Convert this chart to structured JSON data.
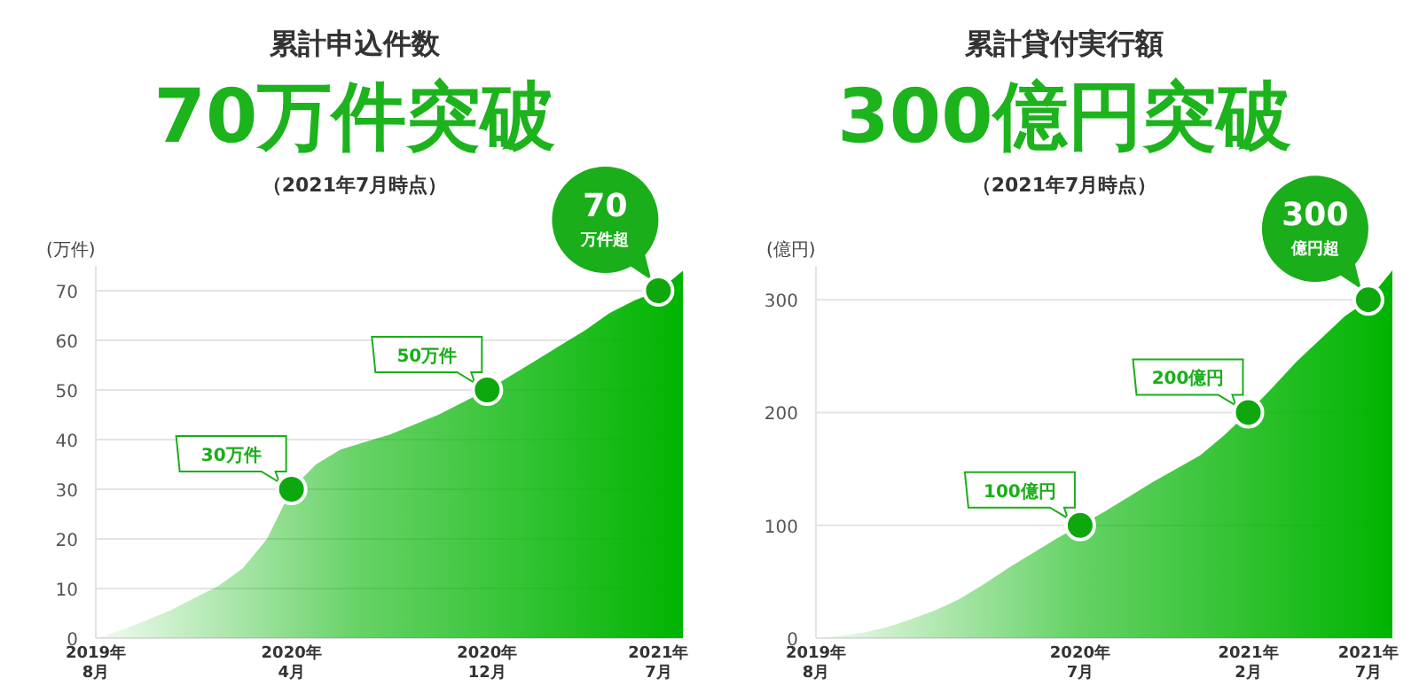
{
  "chart_data": [
    {
      "type": "area",
      "title": "累計申込件数",
      "subtitle": "70万件突破",
      "ylabel": "(万件)",
      "annotations": [
        "（2021年7月時点）",
        {
          "text": "30万件",
          "x": "2020-04",
          "y": 30
        },
        {
          "text": "50万件",
          "x": "2020-12",
          "y": 50
        },
        {
          "text": "70\n万件超",
          "x": "2021-07",
          "y": 70
        }
      ],
      "x": [
        "2019-08",
        "2019-09",
        "2019-10",
        "2019-11",
        "2019-12",
        "2020-01",
        "2020-02",
        "2020-03",
        "2020-04",
        "2020-05",
        "2020-06",
        "2020-07",
        "2020-08",
        "2020-09",
        "2020-10",
        "2020-11",
        "2020-12",
        "2021-01",
        "2021-02",
        "2021-03",
        "2021-04",
        "2021-05",
        "2021-06",
        "2021-07",
        "2021-08"
      ],
      "series": [
        {
          "color": "#00b400",
          "values": [
            0,
            1.5,
            3.5,
            5.5,
            8,
            10.5,
            14,
            20,
            30,
            35,
            38,
            39.5,
            41,
            43,
            45,
            47.5,
            50,
            53,
            56,
            59,
            62,
            65.5,
            68,
            70,
            74
          ]
        }
      ],
      "xlim": [
        "2019-08",
        "2021-08"
      ],
      "xticks": [
        {
          "value": "2019-08",
          "label": "2019年\n8月"
        },
        {
          "value": "2020-04",
          "label": "2020年\n4月"
        },
        {
          "value": "2020-12",
          "label": "2020年\n12月"
        },
        {
          "value": "2021-07",
          "label": "2021年\n7月"
        }
      ],
      "ylim": [
        0,
        75
      ],
      "yticks": [
        0,
        10,
        20,
        30,
        40,
        50,
        60,
        70
      ],
      "grid": "y"
    },
    {
      "type": "area",
      "title": "累計貸付実行額",
      "subtitle": "300億円突破",
      "ylabel": "(億円)",
      "annotations": [
        "（2021年7月時点）",
        {
          "text": "100億円",
          "x": "2020-07",
          "y": 100
        },
        {
          "text": "200億円",
          "x": "2021-02",
          "y": 200
        },
        {
          "text": "300\n億円超",
          "x": "2021-07",
          "y": 300
        }
      ],
      "x": [
        "2019-08",
        "2019-09",
        "2019-10",
        "2019-11",
        "2019-12",
        "2020-01",
        "2020-02",
        "2020-03",
        "2020-04",
        "2020-05",
        "2020-06",
        "2020-07",
        "2020-08",
        "2020-09",
        "2020-10",
        "2020-11",
        "2020-12",
        "2021-01",
        "2021-02",
        "2021-03",
        "2021-04",
        "2021-05",
        "2021-06",
        "2021-07",
        "2021-08"
      ],
      "series": [
        {
          "color": "#00b400",
          "values": [
            0,
            2,
            5,
            10,
            17,
            25,
            35,
            48,
            62,
            75,
            88,
            100,
            112,
            125,
            138,
            150,
            162,
            180,
            200,
            222,
            245,
            265,
            285,
            300,
            326
          ]
        }
      ],
      "xlim": [
        "2019-08",
        "2021-08"
      ],
      "xticks": [
        {
          "value": "2019-08",
          "label": "2019年\n8月"
        },
        {
          "value": "2020-07",
          "label": "2020年\n7月"
        },
        {
          "value": "2021-02",
          "label": "2021年\n2月"
        },
        {
          "value": "2021-07",
          "label": "2021年\n7月"
        }
      ],
      "ylim": [
        0,
        330
      ],
      "yticks": [
        0,
        100,
        200,
        300
      ],
      "grid": "y"
    }
  ]
}
